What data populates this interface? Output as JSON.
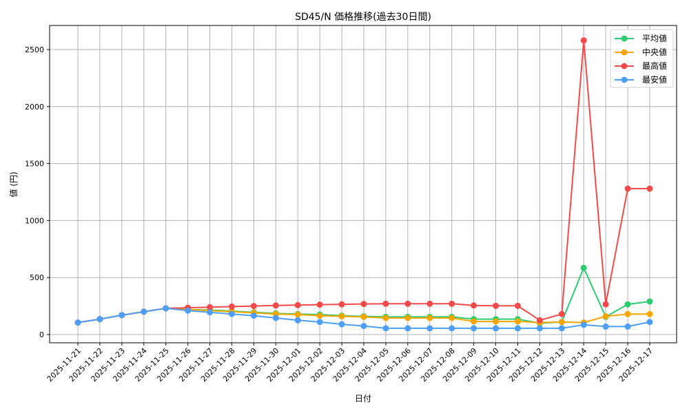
{
  "chart_data": {
    "type": "line",
    "title": "SD45/N 価格推移(過去30日間)",
    "xlabel": "日付",
    "ylabel": "値 (円)",
    "ylim": [
      -70,
      2710
    ],
    "yticks": [
      0,
      500,
      1000,
      1500,
      2000,
      2500
    ],
    "grid": true,
    "legend_position": "upper right",
    "categories": [
      "2025-11-21",
      "2025-11-22",
      "2025-11-23",
      "2025-11-24",
      "2025-11-25",
      "2025-11-26",
      "2025-11-27",
      "2025-11-28",
      "2025-11-29",
      "2025-11-30",
      "2025-12-01",
      "2025-12-02",
      "2025-12-03",
      "2025-12-04",
      "2025-12-05",
      "2025-12-06",
      "2025-12-07",
      "2025-12-08",
      "2025-12-09",
      "2025-12-10",
      "2025-12-11",
      "2025-12-12",
      "2025-12-13",
      "2025-12-14",
      "2025-12-15",
      "2025-12-16",
      "2025-12-17"
    ],
    "series": [
      {
        "name": "平均値",
        "color": "#2ecc71",
        "values": [
          105,
          135,
          170,
          200,
          230,
          220,
          215,
          205,
          195,
          185,
          180,
          175,
          165,
          160,
          155,
          155,
          155,
          155,
          135,
          135,
          135,
          100,
          110,
          585,
          155,
          265,
          290
        ]
      },
      {
        "name": "中央値",
        "color": "#f5a700",
        "values": [
          105,
          135,
          170,
          200,
          230,
          220,
          210,
          200,
          190,
          180,
          175,
          165,
          160,
          155,
          145,
          145,
          145,
          145,
          115,
          115,
          115,
          105,
          110,
          105,
          160,
          180,
          180
        ]
      },
      {
        "name": "最高値",
        "color": "#f24a4a",
        "values": [
          105,
          135,
          170,
          200,
          230,
          235,
          240,
          245,
          250,
          255,
          258,
          262,
          265,
          268,
          270,
          270,
          270,
          270,
          255,
          252,
          252,
          125,
          180,
          2580,
          265,
          1280,
          1280
        ]
      },
      {
        "name": "最安値",
        "color": "#4d9ef5",
        "values": [
          105,
          135,
          170,
          200,
          230,
          210,
          195,
          180,
          165,
          145,
          125,
          110,
          90,
          75,
          55,
          55,
          55,
          55,
          55,
          55,
          55,
          55,
          55,
          85,
          70,
          70,
          110
        ]
      }
    ]
  }
}
